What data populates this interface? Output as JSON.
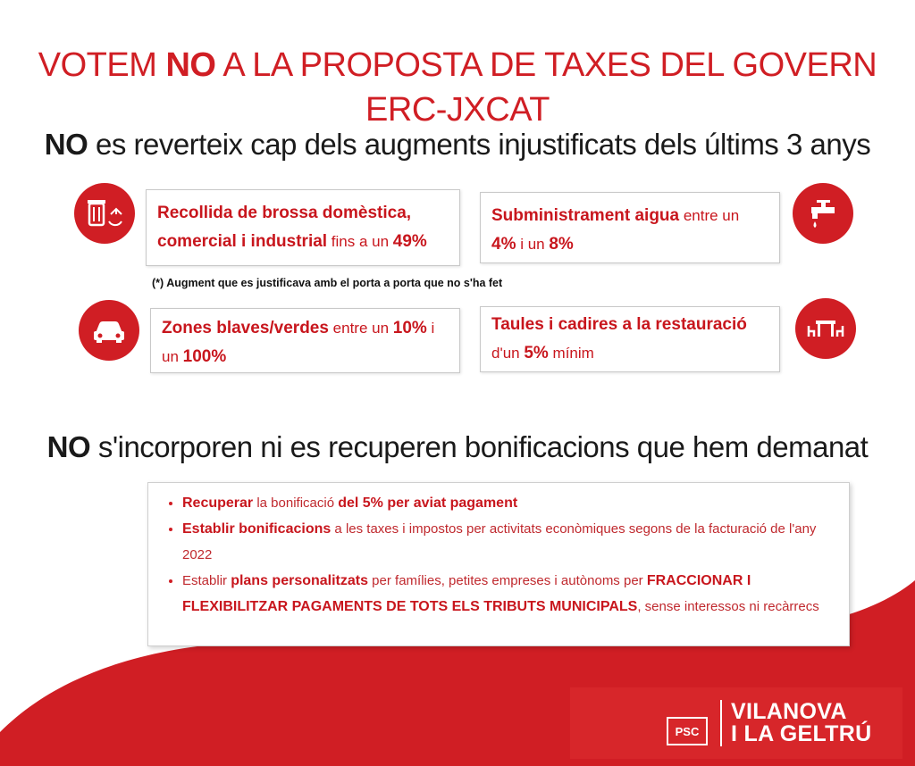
{
  "colors": {
    "brand_red": "#d01e24",
    "text_dark": "#1a1a1a"
  },
  "headline": {
    "part1": "VOTEM ",
    "strong": "NO",
    "part2": " A LA PROPOSTA DE TAXES DEL GOVERN ERC-JXCAT"
  },
  "section1": {
    "strong": "NO",
    "rest": " es reverteix cap dels augments injustificats dels últims 3 anys"
  },
  "cards": {
    "waste": {
      "icon": "waste-recycling-icon",
      "bold1": "Recollida de brossa domèstica,",
      "bold2": "comercial i industrial",
      "light": " fins a un ",
      "value": "49%"
    },
    "water": {
      "icon": "water-tap-icon",
      "bold": "Subministrament aigua",
      "light1": " entre un",
      "value1": "4%",
      "light2": " i un ",
      "value2": "8%"
    },
    "parking": {
      "icon": "car-icon",
      "bold": "Zones blaves/verdes",
      "light1": " entre un ",
      "value1": "10%",
      "light2": " i",
      "light3": "un ",
      "value2": "100%"
    },
    "terraces": {
      "icon": "table-chairs-icon",
      "bold": "Taules i cadires a la restauració",
      "light1": "d'un ",
      "value": "5%",
      "light2": " mínim"
    }
  },
  "note": "(*) Augment que es justificava amb el porta a porta  que no s'ha fet",
  "section2": {
    "strong": "NO",
    "rest": " s'incorporen ni es recuperen  bonificacions que hem demanat"
  },
  "bonuses": [
    {
      "b1": "Recuperar",
      "l1": " la bonificació ",
      "b2": "del 5% per aviat pagament"
    },
    {
      "b1": "Establir bonificacions",
      "l1": " a les taxes i impostos per activitats econòmiques segons de la facturació de l'any 2022"
    },
    {
      "l0": "Establir ",
      "b1": "plans personalitzats",
      "l1": " per famílies, petites empreses i autònoms per ",
      "b2": "FRACCIONAR I FLEXIBILITZAR PAGAMENTS DE TOTS ELS TRIBUTS MUNICIPALS",
      "l2": ", sense interessos ni recàrrecs"
    }
  ],
  "logo": {
    "badge": "PSC",
    "line1": "VILANOVA",
    "line2": "I LA GELTRÚ"
  }
}
